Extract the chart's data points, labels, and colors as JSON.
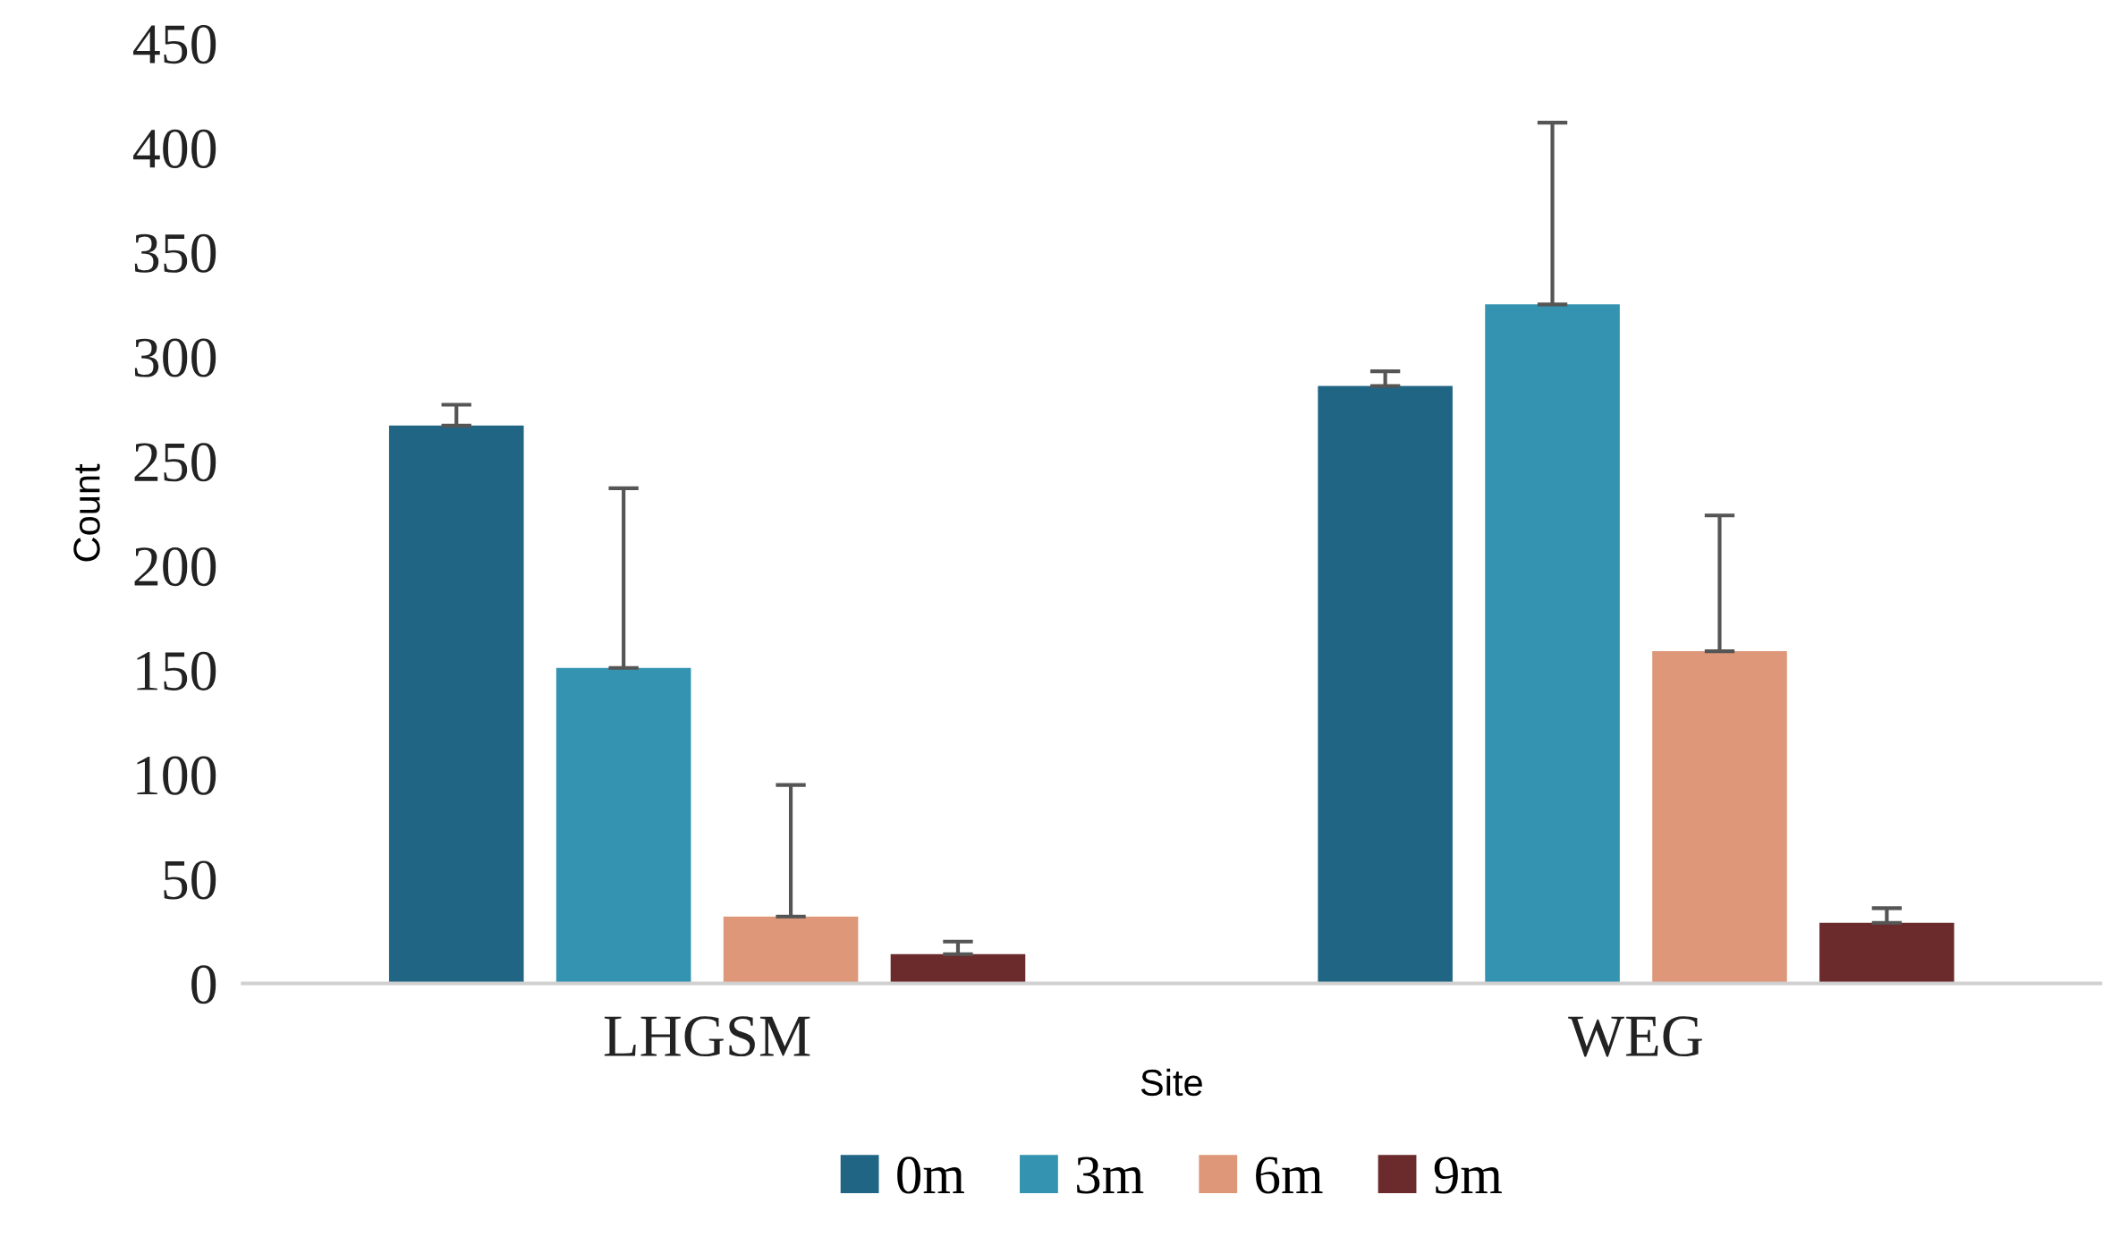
{
  "chart_data": {
    "type": "bar",
    "xlabel": "Site",
    "ylabel": "Count",
    "categories": [
      "LHGSM",
      "WEG"
    ],
    "series": [
      {
        "name": "0m",
        "color": "#206584",
        "values": [
          267,
          286
        ],
        "errors": [
          [
            267,
            277
          ],
          [
            286,
            293
          ]
        ]
      },
      {
        "name": "3m",
        "color": "#3393b0",
        "values": [
          151,
          325
        ],
        "errors": [
          [
            151,
            237
          ],
          [
            325,
            412
          ]
        ]
      },
      {
        "name": "6m",
        "color": "#df9779",
        "values": [
          32,
          159
        ],
        "errors": [
          [
            32,
            95
          ],
          [
            159,
            224
          ]
        ]
      },
      {
        "name": "9m",
        "color": "#6b2a2b",
        "values": [
          14,
          29
        ],
        "errors": [
          [
            14,
            20
          ],
          [
            29,
            36
          ]
        ]
      }
    ],
    "ylim": [
      0,
      450
    ],
    "yticks": [
      0,
      50,
      100,
      150,
      200,
      250,
      300,
      350,
      400,
      450
    ],
    "grid": false,
    "legend": "bottom"
  }
}
